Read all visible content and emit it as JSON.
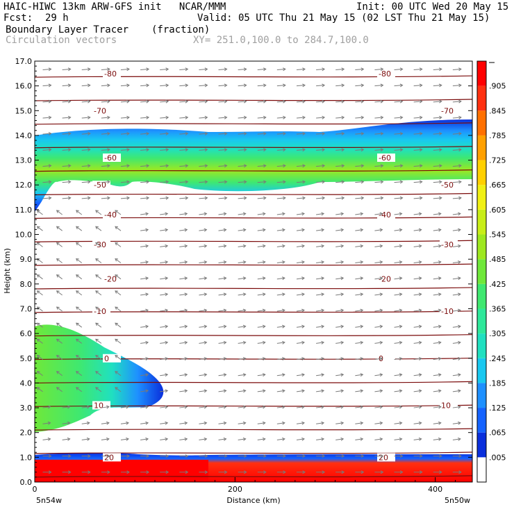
{
  "header": {
    "model": "HAIC-HIWC 13km ARW-GFS init   NCAR/MMM",
    "init": "Init: 00 UTC Wed 20 May 15",
    "fcst_label": "Fcst:",
    "fcst_value": "29 h",
    "valid": "Valid: 05 UTC Thu 21 May 15 (02 LST Thu 21 May 15)",
    "field_name": "Boundary Layer Tracer",
    "field_units": "(fraction)",
    "vector_name": "Circulation vectors",
    "xy": "XY= 251.0,100.0 to 284.7,100.0"
  },
  "chart_data": {
    "type": "heatmap",
    "ylabel": "Height (km)",
    "xlabel": "Distance (km)",
    "x_left_label": "5n54w",
    "x_right_label": "5n50w",
    "xlim": [
      0,
      437
    ],
    "ylim": [
      0,
      17
    ],
    "x_ticks": [
      0,
      200,
      400
    ],
    "y_ticks": [
      "0.0",
      "1.0",
      "2.0",
      "3.0",
      "4.0",
      "5.0",
      "6.0",
      "7.0",
      "8.0",
      "9.0",
      "10.0",
      "11.0",
      "12.0",
      "13.0",
      "14.0",
      "15.0",
      "16.0",
      "17.0"
    ],
    "colorbar": {
      "labels": [
        ".005",
        ".065",
        ".125",
        ".185",
        ".245",
        ".305",
        ".365",
        ".425",
        ".485",
        ".545",
        ".605",
        ".665",
        ".725",
        ".785",
        ".845",
        ".905"
      ],
      "colors": [
        "#ffffff",
        "#0a2fdc",
        "#1563ff",
        "#1e90ff",
        "#19c8f0",
        "#20e0c0",
        "#2ee89a",
        "#3fe870",
        "#6fe83a",
        "#9ee820",
        "#c8ee18",
        "#f0f014",
        "#ffd000",
        "#ffa000",
        "#ff7000",
        "#ff3010",
        "#ff0000"
      ]
    },
    "temperature_contours": [
      {
        "label": "-80",
        "height_km": 16.5
      },
      {
        "label": "-70",
        "height_km": 15.0
      },
      {
        "label": "-60",
        "height_km": 13.1
      },
      {
        "label": "-50",
        "height_km": 12.0
      },
      {
        "label": "-40",
        "height_km": 10.8
      },
      {
        "label": "-30",
        "height_km": 9.6
      },
      {
        "label": "-20",
        "height_km": 8.2
      },
      {
        "label": "-10",
        "height_km": 6.9
      },
      {
        "label": "0",
        "height_km": 5.0
      },
      {
        "label": "10",
        "height_km": 3.1
      },
      {
        "label": "20",
        "height_km": 1.0
      }
    ]
  }
}
